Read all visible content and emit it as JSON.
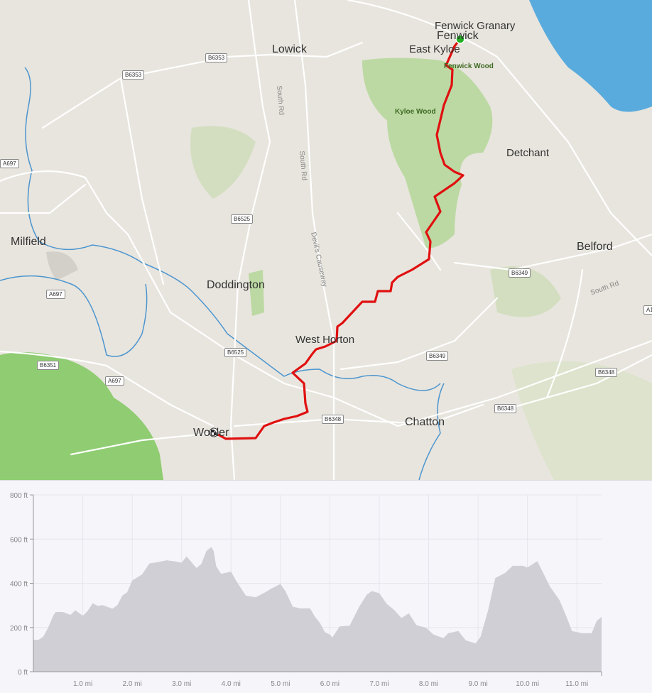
{
  "map": {
    "places": [
      {
        "name": "Lowick"
      },
      {
        "name": "Fenwick Granary"
      },
      {
        "name": "Fenwick"
      },
      {
        "name": "East Kyloe"
      },
      {
        "name": "Detchant"
      },
      {
        "name": "Milfield"
      },
      {
        "name": "Belford"
      },
      {
        "name": "Doddington"
      },
      {
        "name": "West Horton"
      },
      {
        "name": "Chatton"
      },
      {
        "name": "Wooler"
      }
    ],
    "woods": [
      "Fenwick Wood",
      "Kyloe Wood"
    ],
    "road_shields": [
      "B6353",
      "B6353",
      "A697",
      "B6525",
      "A697",
      "B6349",
      "B6351",
      "A697",
      "B6525",
      "B6349",
      "B6348",
      "B6348",
      "B6348",
      "A1"
    ],
    "road_names": [
      "South Rd",
      "South Rd",
      "Devil's Causeway",
      "South Rd"
    ],
    "start_marker_color": "#22b022",
    "route_color": "#e01010",
    "finish_icon": "checkered-flag-icon"
  },
  "chart_data": {
    "type": "area",
    "title": "",
    "xlabel": "",
    "ylabel": "",
    "x_unit": "mi",
    "y_unit": "ft",
    "xlim": [
      0,
      11.5
    ],
    "ylim": [
      0,
      800
    ],
    "y_ticks": [
      "0 ft",
      "200 ft",
      "400 ft",
      "600 ft",
      "800 ft"
    ],
    "x_ticks": [
      "1.0 mi",
      "2.0 mi",
      "3.0 mi",
      "4.0 mi",
      "5.0 mi",
      "6.0 mi",
      "7.0 mi",
      "8.0 mi",
      "9.0 mi",
      "10.0 mi",
      "11.0 mi"
    ],
    "grid": true,
    "fill_color": "#d0cfd6",
    "x": [
      0,
      0.1,
      0.2,
      0.3,
      0.4,
      0.45,
      0.6,
      0.75,
      0.85,
      1.0,
      1.1,
      1.2,
      1.3,
      1.4,
      1.6,
      1.7,
      1.8,
      1.9,
      2.0,
      2.2,
      2.35,
      2.5,
      2.7,
      2.9,
      3.0,
      3.1,
      3.3,
      3.4,
      3.5,
      3.6,
      3.65,
      3.7,
      3.8,
      4.0,
      4.1,
      4.3,
      4.5,
      4.7,
      4.8,
      5.0,
      5.1,
      5.25,
      5.4,
      5.6,
      5.7,
      5.8,
      5.9,
      6.0,
      6.05,
      6.2,
      6.4,
      6.6,
      6.75,
      6.85,
      7.0,
      7.15,
      7.3,
      7.45,
      7.6,
      7.75,
      7.95,
      8.1,
      8.3,
      8.4,
      8.6,
      8.75,
      8.95,
      9.05,
      9.2,
      9.35,
      9.55,
      9.7,
      9.9,
      10.0,
      10.2,
      10.45,
      10.65,
      10.8,
      10.9,
      11.1,
      11.3,
      11.4,
      11.5
    ],
    "y": [
      144,
      144,
      158,
      200,
      253,
      270,
      270,
      257,
      278,
      253,
      275,
      310,
      298,
      301,
      285,
      301,
      344,
      360,
      413,
      440,
      490,
      495,
      504,
      498,
      493,
      522,
      469,
      488,
      546,
      564,
      546,
      477,
      443,
      453,
      413,
      344,
      337,
      360,
      374,
      397,
      365,
      294,
      287,
      287,
      248,
      221,
      179,
      168,
      155,
      205,
      208,
      296,
      349,
      365,
      355,
      307,
      280,
      243,
      264,
      211,
      198,
      168,
      152,
      174,
      184,
      142,
      128,
      158,
      275,
      424,
      447,
      479,
      479,
      472,
      500,
      387,
      323,
      243,
      184,
      174,
      174,
      229,
      248
    ]
  }
}
